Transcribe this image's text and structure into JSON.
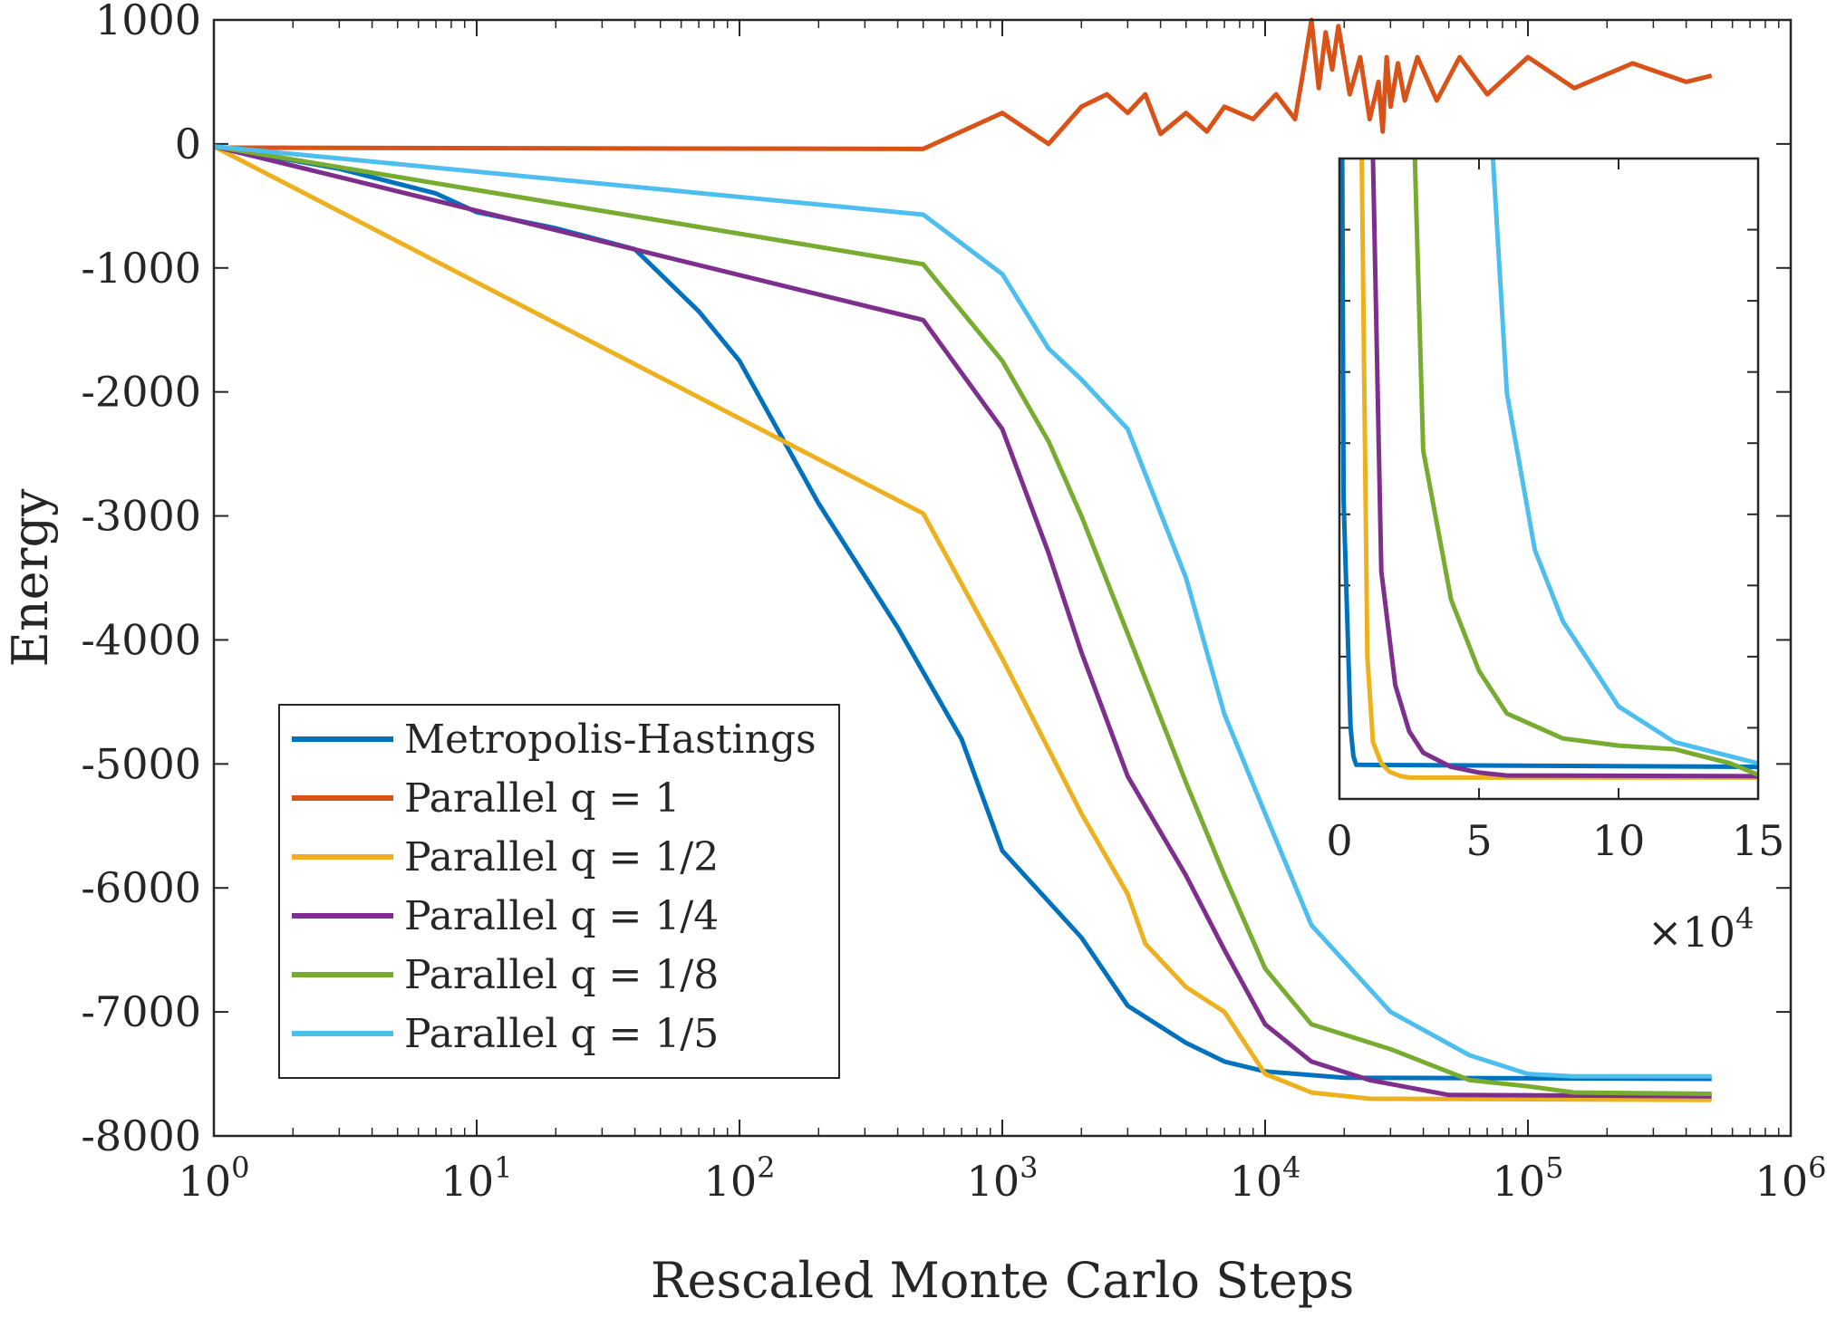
{
  "chart_data": {
    "type": "line",
    "title": "",
    "xlabel": "Rescaled Monte Carlo Steps",
    "ylabel": "Energy",
    "x_scale": "log",
    "xlim": [
      1,
      1000000
    ],
    "ylim": [
      -8000,
      1000
    ],
    "x_ticks": [
      {
        "value": 1,
        "base": "10",
        "exp": "0"
      },
      {
        "value": 10,
        "base": "10",
        "exp": "1"
      },
      {
        "value": 100,
        "base": "10",
        "exp": "2"
      },
      {
        "value": 1000,
        "base": "10",
        "exp": "3"
      },
      {
        "value": 10000,
        "base": "10",
        "exp": "4"
      },
      {
        "value": 100000,
        "base": "10",
        "exp": "5"
      },
      {
        "value": 1000000,
        "base": "10",
        "exp": "6"
      }
    ],
    "y_ticks": [
      {
        "value": 1000,
        "label": "1000"
      },
      {
        "value": 0,
        "label": "0"
      },
      {
        "value": -1000,
        "label": "-1000"
      },
      {
        "value": -2000,
        "label": "-2000"
      },
      {
        "value": -3000,
        "label": "-3000"
      },
      {
        "value": -4000,
        "label": "-4000"
      },
      {
        "value": -5000,
        "label": "-5000"
      },
      {
        "value": -6000,
        "label": "-6000"
      },
      {
        "value": -7000,
        "label": "-7000"
      },
      {
        "value": -8000,
        "label": "-8000"
      }
    ],
    "grid": false,
    "legend_position": "bottom-left",
    "series": [
      {
        "name": "Metropolis-Hastings",
        "color": "#0072BD",
        "x": [
          1,
          3,
          7,
          10,
          20,
          40,
          70,
          100,
          200,
          400,
          700,
          1000,
          2000,
          3000,
          5000,
          7000,
          10000,
          20000,
          500000
        ],
        "y": [
          -20,
          -200,
          -400,
          -550,
          -680,
          -850,
          -1350,
          -1750,
          -2900,
          -3900,
          -4800,
          -5700,
          -6400,
          -6950,
          -7250,
          -7400,
          -7480,
          -7530,
          -7540
        ]
      },
      {
        "name": "Parallel q = 1",
        "color": "#D95319",
        "x": [
          1,
          500,
          1000,
          1500,
          2000,
          2500,
          3000,
          3500,
          4000,
          5000,
          6000,
          7000,
          9000,
          11000,
          13000,
          14000,
          15000,
          16000,
          17000,
          18000,
          19000,
          21000,
          23000,
          25000,
          27000,
          28000,
          29000,
          30000,
          32000,
          34000,
          38000,
          45000,
          55000,
          70000,
          100000,
          150000,
          250000,
          400000,
          500000
        ],
        "y": [
          -30,
          -40,
          250,
          0,
          300,
          400,
          250,
          400,
          80,
          250,
          100,
          300,
          200,
          400,
          200,
          600,
          1000,
          450,
          900,
          600,
          950,
          400,
          700,
          200,
          500,
          100,
          700,
          300,
          650,
          350,
          700,
          350,
          700,
          400,
          700,
          450,
          650,
          500,
          550
        ]
      },
      {
        "name": "Parallel q = 1/2",
        "color": "#EDB120",
        "x": [
          1,
          500,
          1000,
          2000,
          3000,
          3500,
          5000,
          7000,
          10000,
          15000,
          25000,
          500000
        ],
        "y": [
          -20,
          -2980,
          -4150,
          -5400,
          -6050,
          -6450,
          -6800,
          -7000,
          -7500,
          -7650,
          -7700,
          -7710
        ]
      },
      {
        "name": "Parallel q = 1/4",
        "color": "#7E2F8E",
        "x": [
          1,
          500,
          1000,
          1500,
          2000,
          3000,
          5000,
          7000,
          10000,
          15000,
          25000,
          50000,
          500000
        ],
        "y": [
          -20,
          -1420,
          -2300,
          -3300,
          -4100,
          -5100,
          -5900,
          -6500,
          -7100,
          -7400,
          -7550,
          -7670,
          -7680
        ]
      },
      {
        "name": "Parallel q = 1/8",
        "color": "#77AC30",
        "x": [
          1,
          500,
          1000,
          1500,
          2000,
          3000,
          5000,
          7000,
          10000,
          15000,
          30000,
          60000,
          100000,
          150000,
          500000
        ],
        "y": [
          -20,
          -970,
          -1750,
          -2400,
          -3000,
          -3950,
          -5150,
          -5900,
          -6650,
          -7100,
          -7300,
          -7550,
          -7600,
          -7650,
          -7660
        ]
      },
      {
        "name": "Parallel q = 1/5",
        "color": "#4DBEEE",
        "x": [
          1,
          500,
          1000,
          1500,
          2000,
          3000,
          5000,
          7000,
          10000,
          15000,
          30000,
          60000,
          100000,
          150000,
          500000
        ],
        "y": [
          -20,
          -570,
          -1050,
          -1650,
          -1900,
          -2300,
          -3500,
          -4600,
          -5400,
          -6300,
          -7000,
          -7350,
          -7500,
          -7520,
          -7520
        ]
      }
    ],
    "inset": {
      "x_scale": "linear",
      "xlim": [
        0,
        150000
      ],
      "ylim": [
        -8000,
        1000
      ],
      "x_ticks": [
        {
          "value": 0,
          "label": "0"
        },
        {
          "value": 50000,
          "label": "5"
        },
        {
          "value": 100000,
          "label": "10"
        },
        {
          "value": 150000,
          "label": "15"
        }
      ],
      "x_multiplier": {
        "base": "×10",
        "exp": "4"
      },
      "series": [
        {
          "name": "Metropolis-Hastings",
          "color": "#0072BD",
          "x": [
            1000,
            1500,
            4000,
            5000,
            6000,
            150000
          ],
          "y": [
            1000,
            -3800,
            -7000,
            -7400,
            -7520,
            -7550
          ]
        },
        {
          "name": "Parallel q = 1/2",
          "color": "#EDB120",
          "x": [
            8000,
            10000,
            12000,
            15000,
            18000,
            22000,
            25000,
            150000
          ],
          "y": [
            1000,
            -6000,
            -7200,
            -7500,
            -7620,
            -7680,
            -7700,
            -7700
          ]
        },
        {
          "name": "Parallel q = 1/4",
          "color": "#7E2F8E",
          "x": [
            12000,
            15000,
            20000,
            25000,
            30000,
            40000,
            50000,
            60000,
            150000
          ],
          "y": [
            1000,
            -4800,
            -6400,
            -7050,
            -7350,
            -7550,
            -7630,
            -7670,
            -7680
          ]
        },
        {
          "name": "Parallel q = 1/8",
          "color": "#77AC30",
          "x": [
            27000,
            30000,
            40000,
            50000,
            60000,
            80000,
            100000,
            120000,
            140000,
            150000
          ],
          "y": [
            1000,
            -3100,
            -5200,
            -6200,
            -6800,
            -7150,
            -7250,
            -7300,
            -7500,
            -7660
          ]
        },
        {
          "name": "Parallel q = 1/5",
          "color": "#4DBEEE",
          "x": [
            55000,
            60000,
            70000,
            80000,
            100000,
            120000,
            150000
          ],
          "y": [
            1000,
            -2300,
            -4500,
            -5500,
            -6700,
            -7200,
            -7500
          ]
        }
      ]
    }
  }
}
